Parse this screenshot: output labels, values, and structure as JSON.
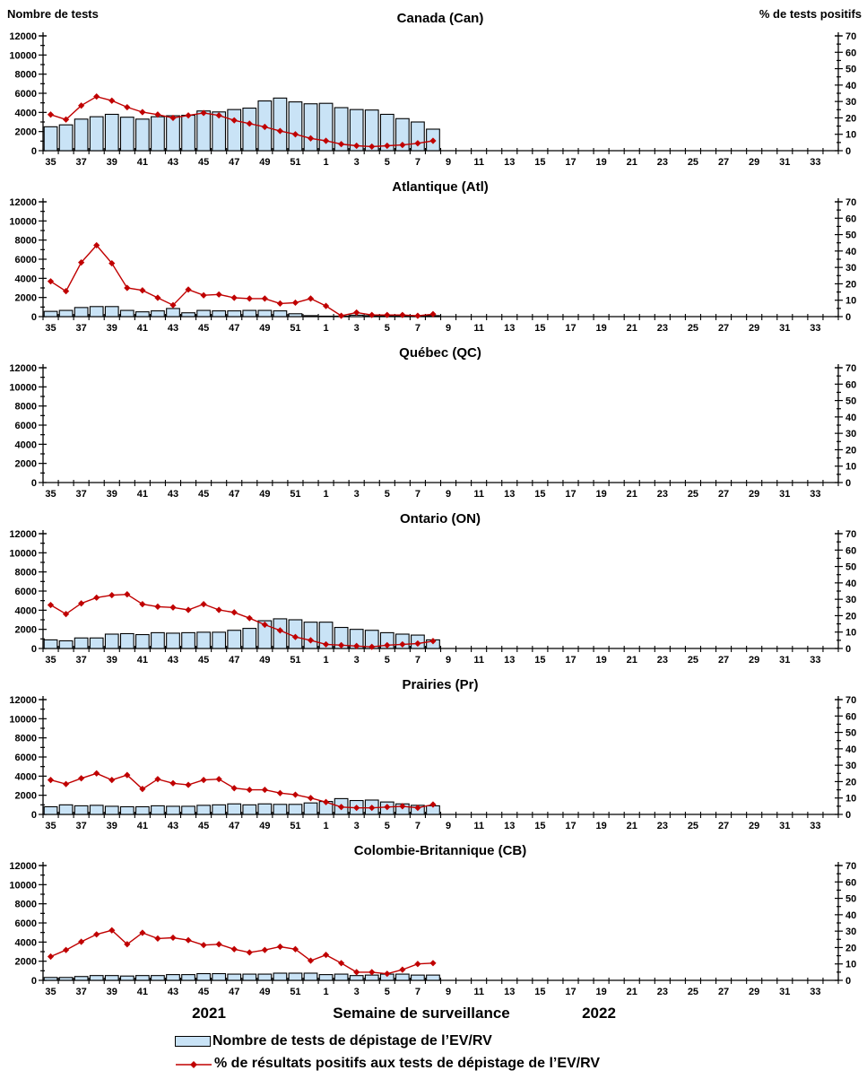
{
  "header": {
    "left_axis_title": "Nombre de tests",
    "right_axis_title": "% de tests positifs"
  },
  "footer": {
    "year_left": "2021",
    "x_axis_title": "Semaine de surveillance",
    "year_right": "2022"
  },
  "legend": {
    "items": [
      {
        "swatch": "bar",
        "label": "Nombre de tests de dépistage de l’EV/RV"
      },
      {
        "swatch": "line",
        "label": "% de résultats positifs aux tests de dépistage de l’EV/RV"
      }
    ]
  },
  "colors": {
    "bar_fill": "#C9E3F6",
    "bar_stroke": "#000000",
    "line": "#C00000",
    "text": "#000000"
  },
  "chart_data": {
    "type": "bar",
    "layout": "6 stacked panels, each a bar series (left axis) with overlaid line series (right axis)",
    "x": {
      "title": "Semaine de surveillance",
      "year_left": "2021",
      "year_right": "2022",
      "week_labels": [
        "35",
        "36",
        "37",
        "38",
        "39",
        "40",
        "41",
        "42",
        "43",
        "44",
        "45",
        "46",
        "47",
        "48",
        "49",
        "50",
        "51",
        "52",
        "1",
        "2",
        "3",
        "4",
        "5",
        "6",
        "7",
        "8",
        "9",
        "10",
        "11",
        "12",
        "13",
        "14",
        "15",
        "16",
        "17",
        "18",
        "19",
        "20",
        "21",
        "22",
        "23",
        "24",
        "25",
        "26",
        "27",
        "28",
        "29",
        "30",
        "31",
        "32",
        "33",
        "34"
      ],
      "labeled_ticks": [
        "35",
        "37",
        "39",
        "41",
        "43",
        "45",
        "47",
        "49",
        "51",
        "1",
        "3",
        "5",
        "7",
        "9",
        "11",
        "13",
        "15",
        "17",
        "19",
        "21",
        "23",
        "25",
        "27",
        "29",
        "31",
        "33"
      ]
    },
    "y_left": {
      "title": "Nombre de tests",
      "min": 0,
      "max": 12000,
      "step": 2000,
      "minor_step": 1000
    },
    "y_right": {
      "title": "% de tests positifs",
      "min": 0,
      "max": 70,
      "step": 10,
      "minor_step": 5
    },
    "series_weeks": [
      "35",
      "36",
      "37",
      "38",
      "39",
      "40",
      "41",
      "42",
      "43",
      "44",
      "45",
      "46",
      "47",
      "48",
      "49",
      "50",
      "51",
      "52",
      "1",
      "2",
      "3",
      "4",
      "5",
      "6",
      "7",
      "8"
    ],
    "series_names": {
      "bars": "Nombre de tests de dépistage de l’EV/RV",
      "line": "% de résultats positifs aux tests de dépistage de l’EV/RV"
    },
    "panels": [
      {
        "title": "Canada (Can)",
        "tests": [
          2500,
          2700,
          3300,
          3550,
          3800,
          3500,
          3300,
          3550,
          3650,
          3700,
          4150,
          4050,
          4300,
          4450,
          5200,
          5500,
          5100,
          4900,
          4950,
          4500,
          4300,
          4250,
          3800,
          3350,
          3000,
          2250
        ],
        "pct_positive": [
          22,
          19,
          27.5,
          33,
          30.5,
          26.5,
          23.5,
          22,
          20,
          21.5,
          23,
          21.5,
          18.5,
          16.5,
          14.5,
          12,
          10,
          7.5,
          6,
          4,
          3,
          2.5,
          3,
          3.5,
          4.5,
          6
        ]
      },
      {
        "title": "Atlantique (Atl)",
        "tests": [
          550,
          650,
          950,
          1050,
          1050,
          650,
          500,
          600,
          850,
          400,
          650,
          600,
          600,
          650,
          650,
          600,
          300,
          100,
          50,
          50,
          150,
          100,
          100,
          100,
          50,
          100
        ],
        "pct_positive": [
          21.5,
          15.5,
          33,
          43.5,
          32.5,
          17.5,
          16,
          11.5,
          7,
          16.5,
          13,
          13.5,
          11.5,
          11,
          11,
          8,
          8.5,
          11,
          6.5,
          0.5,
          2.5,
          1,
          1,
          1,
          0.5,
          1.5
        ]
      },
      {
        "title": "Québec (QC)",
        "tests": [],
        "pct_positive": []
      },
      {
        "title": "Ontario (ON)",
        "tests": [
          900,
          800,
          1100,
          1100,
          1500,
          1550,
          1450,
          1650,
          1600,
          1650,
          1700,
          1700,
          1900,
          2100,
          2900,
          3100,
          3000,
          2750,
          2750,
          2200,
          2000,
          1900,
          1650,
          1500,
          1400,
          900
        ],
        "pct_positive": [
          26.5,
          21,
          27.5,
          31,
          32.5,
          33,
          27,
          25.5,
          25,
          23.5,
          27,
          23.5,
          22,
          18.5,
          14.5,
          11,
          7,
          5,
          2.5,
          2,
          1.5,
          1,
          2,
          2.5,
          3,
          4.5
        ]
      },
      {
        "title": "Prairies (Pr)",
        "tests": [
          800,
          1000,
          900,
          950,
          850,
          800,
          800,
          900,
          850,
          850,
          950,
          1000,
          1100,
          1000,
          1100,
          1050,
          1050,
          1200,
          1350,
          1650,
          1450,
          1500,
          1300,
          1100,
          950,
          900
        ],
        "pct_positive": [
          21,
          18.5,
          22,
          25,
          21,
          24,
          15.5,
          21.5,
          19,
          18,
          21,
          21.5,
          16,
          15,
          15,
          13,
          12,
          10,
          7.5,
          4.5,
          4,
          4,
          4.5,
          5,
          4,
          6
        ]
      },
      {
        "title": "Colombie-Britannique (CB)",
        "tests": [
          300,
          300,
          400,
          500,
          500,
          450,
          500,
          500,
          600,
          600,
          700,
          700,
          650,
          650,
          650,
          750,
          750,
          750,
          600,
          650,
          500,
          550,
          650,
          650,
          550,
          550
        ],
        "pct_positive": [
          14.5,
          18.5,
          23.5,
          28,
          30.5,
          22,
          29,
          25.5,
          26,
          24.5,
          21.5,
          22,
          19,
          17,
          18.5,
          20.5,
          19,
          12,
          15.5,
          10.5,
          5,
          5,
          4,
          6.5,
          10,
          10.5
        ]
      }
    ]
  }
}
